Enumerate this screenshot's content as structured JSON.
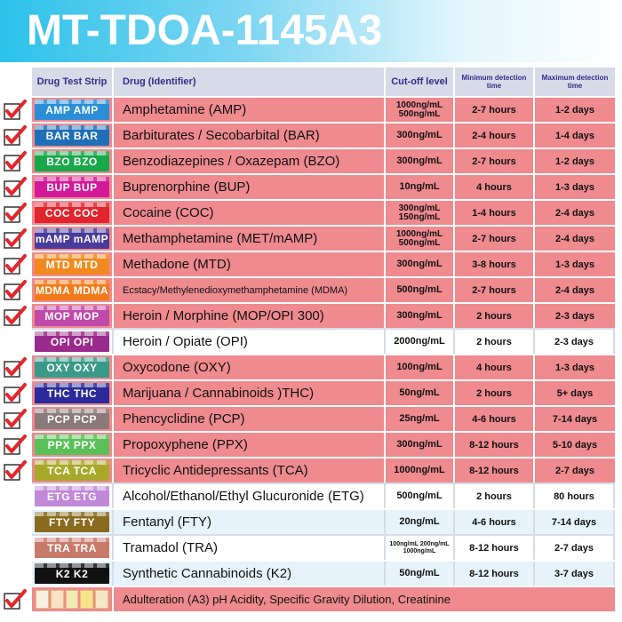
{
  "title": "MT-TDOA-1145A3",
  "colors": {
    "banner_start": "#2cc2ea",
    "header_text": "#2f2f8c",
    "selected_row": "#ef8a8f",
    "check": "#e3262d"
  },
  "headers": {
    "strip": "Drug Test Strip",
    "drug": "Drug (Identifier)",
    "cutoff": "Cut-off level",
    "min": "Minimum detection time",
    "max": "Maximum detection time"
  },
  "rows": [
    {
      "abbr": "AMP",
      "color": "#2a8fd6",
      "drug": "Amphetamine (AMP)",
      "cutoff": "1000ng/mL 500ng/mL",
      "min": "2-7 hours",
      "max": "1-2 days",
      "checked": true
    },
    {
      "abbr": "BAR",
      "color": "#1f6fb8",
      "drug": "Barbiturates / Secobarbital (BAR)",
      "cutoff": "300ng/mL",
      "min": "2-4 hours",
      "max": "1-4 days",
      "checked": true
    },
    {
      "abbr": "BZO",
      "color": "#18a84a",
      "drug": "Benzodiazepines / Oxazepam (BZO)",
      "cutoff": "300ng/mL",
      "min": "2-7 hours",
      "max": "1-2 days",
      "checked": true
    },
    {
      "abbr": "BUP",
      "color": "#d4189a",
      "drug": "Buprenorphine (BUP)",
      "cutoff": "10ng/mL",
      "min": "4 hours",
      "max": "1-3 days",
      "checked": true
    },
    {
      "abbr": "COC",
      "color": "#e1252d",
      "drug": "Cocaine (COC)",
      "cutoff": "300ng/mL 150ng/mL",
      "min": "1-4 hours",
      "max": "2-4 days",
      "checked": true
    },
    {
      "abbr": "mAMP",
      "color": "#4a3a9a",
      "drug": "Methamphetamine (MET/mAMP)",
      "cutoff": "1000ng/mL 500ng/mL",
      "min": "2-7 hours",
      "max": "2-4 days",
      "checked": true
    },
    {
      "abbr": "MTD",
      "color": "#f08a1e",
      "drug": "Methadone (MTD)",
      "cutoff": "300ng/mL",
      "min": "3-8 hours",
      "max": "1-3 days",
      "checked": true
    },
    {
      "abbr": "MDMA",
      "color": "#f27a1a",
      "drug": "Ecstacy/Methylenedioxymethamphetamine (MDMA)",
      "cutoff": "500ng/mL",
      "min": "2-7 hours",
      "max": "2-4 days",
      "checked": true,
      "small": true
    },
    {
      "abbr": "MOP",
      "color": "#c04aa8",
      "drug": "Heroin / Morphine (MOP/OPI 300)",
      "cutoff": "300ng/mL",
      "min": "2 hours",
      "max": "2-3 days",
      "checked": true
    },
    {
      "abbr": "OPI",
      "color": "#9a2a8c",
      "drug": "Heroin / Opiate (OPI)",
      "cutoff": "2000ng/mL",
      "min": "2 hours",
      "max": "2-3 days",
      "checked": false,
      "style": "white"
    },
    {
      "abbr": "OXY",
      "color": "#3a9a8a",
      "drug": "Oxycodone (OXY)",
      "cutoff": "100ng/mL",
      "min": "4 hours",
      "max": "1-3 days",
      "checked": true
    },
    {
      "abbr": "THC",
      "color": "#2a2a9a",
      "drug": "Marijuana / Cannabinoids )THC)",
      "cutoff": "50ng/mL",
      "min": "2 hours",
      "max": "5+ days",
      "checked": true
    },
    {
      "abbr": "PCP",
      "color": "#8a7a7a",
      "drug": "Phencyclidine (PCP)",
      "cutoff": "25ng/mL",
      "min": "4-6 hours",
      "max": "7-14 days",
      "checked": true
    },
    {
      "abbr": "PPX",
      "color": "#5ac05a",
      "drug": "Propoxyphene (PPX)",
      "cutoff": "300ng/mL",
      "min": "8-12 hours",
      "max": "5-10 days",
      "checked": true
    },
    {
      "abbr": "TCA",
      "color": "#a8a82a",
      "drug": "Tricyclic Antidepressants (TCA)",
      "cutoff": "1000ng/mL",
      "min": "8-12 hours",
      "max": "2-7 days",
      "checked": true
    },
    {
      "abbr": "ETG",
      "color": "#c088d8",
      "drug": "Alcohol/Ethanol/Ethyl Glucuronide (ETG)",
      "cutoff": "500ng/mL",
      "min": "2 hours",
      "max": "80 hours",
      "checked": false,
      "style": "white"
    },
    {
      "abbr": "FTY",
      "color": "#8a6a1e",
      "drug": "Fentanyl (FTY)",
      "cutoff": "20ng/mL",
      "min": "4-6 hours",
      "max": "7-14 days",
      "checked": false,
      "style": "light"
    },
    {
      "abbr": "TRA",
      "color": "#c87a6a",
      "drug": "Tramadol (TRA)",
      "cutoff": "100ng/mL 200ng/mL 1000ng/mL",
      "min": "8-12 hours",
      "max": "2-7 days",
      "checked": false,
      "style": "white",
      "tiny": true
    },
    {
      "abbr": "K2",
      "color": "#111111",
      "drug": "Synthetic Cannabinoids (K2)",
      "cutoff": "50ng/mL",
      "min": "8-12 hours",
      "max": "3-7 days",
      "checked": false,
      "style": "light"
    }
  ],
  "adulteration": {
    "drug": "Adulteration (A3) pH Acidity, Specific Gravity Dilution, Creatinine",
    "checked": true
  }
}
